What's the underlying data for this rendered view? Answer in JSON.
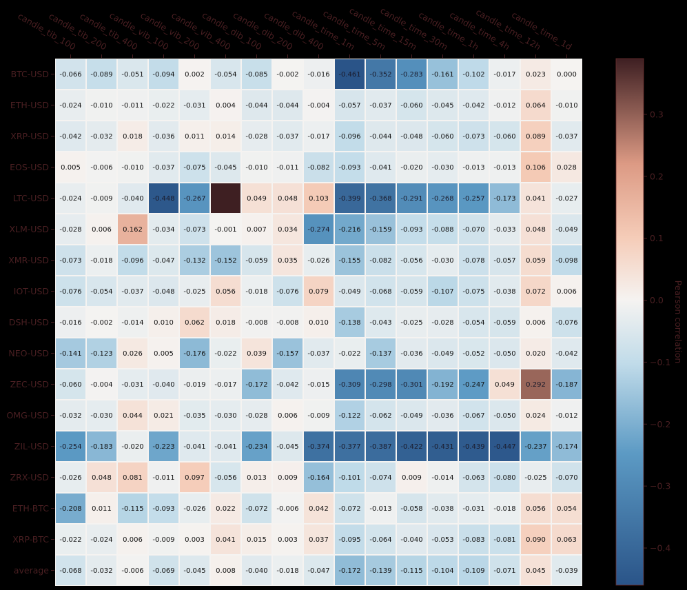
{
  "chart_data": {
    "type": "heatmap",
    "columns": [
      "candle_tib_100",
      "candle_tib_200",
      "candle_tib_400",
      "candle_vib_100",
      "candle_vib_200",
      "candle_vib_400",
      "candle_dib_100",
      "candle_dib_200",
      "candle_dib_400",
      "candle_time_1m",
      "candle_time_5m",
      "candle_time_15m",
      "candle_time_30m",
      "candle_time_1h",
      "candle_time_4h",
      "candle_time_12h",
      "candle_time_1d"
    ],
    "rows": [
      "BTC-USD",
      "ETH-USD",
      "XRP-USD",
      "EOS-USD",
      "LTC-USD",
      "XLM-USD",
      "XMR-USD",
      "IOT-USD",
      "DSH-USD",
      "NEO-USD",
      "ZEC-USD",
      "OMG-USD",
      "ZIL-USD",
      "ZRX-USD",
      "ETH-BTC",
      "XRP-BTC",
      "average"
    ],
    "values": [
      [
        "-0.066",
        "-0.089",
        "-0.051",
        "-0.094",
        "0.002",
        "-0.054",
        "-0.085",
        "-0.002",
        "-0.016",
        "-0.461",
        "-0.352",
        "-0.283",
        "-0.161",
        "-0.102",
        "-0.017",
        "0.023",
        "0.000"
      ],
      [
        "-0.024",
        "-0.010",
        "-0.011",
        "-0.022",
        "-0.031",
        "0.004",
        "-0.044",
        "-0.044",
        "-0.004",
        "-0.057",
        "-0.037",
        "-0.060",
        "-0.045",
        "-0.042",
        "-0.012",
        "0.064",
        "-0.010"
      ],
      [
        "-0.042",
        "-0.032",
        "0.018",
        "-0.036",
        "0.011",
        "0.014",
        "-0.028",
        "-0.037",
        "-0.017",
        "-0.096",
        "-0.044",
        "-0.048",
        "-0.060",
        "-0.073",
        "-0.060",
        "0.089",
        "-0.037"
      ],
      [
        "0.005",
        "-0.006",
        "-0.010",
        "-0.037",
        "-0.075",
        "-0.045",
        "-0.010",
        "-0.011",
        "-0.082",
        "-0.093",
        "-0.041",
        "-0.020",
        "-0.030",
        "-0.013",
        "-0.013",
        "0.106",
        "0.028"
      ],
      [
        "-0.024",
        "-0.009",
        "-0.040",
        "-0.448",
        "-0.267",
        "",
        "0.049",
        "0.048",
        "0.103",
        "-0.399",
        "-0.368",
        "-0.291",
        "-0.268",
        "-0.257",
        "-0.173",
        "0.041",
        "-0.027"
      ],
      [
        "-0.028",
        "0.006",
        "0.162",
        "-0.034",
        "-0.073",
        "-0.001",
        "0.007",
        "0.034",
        "-0.274",
        "-0.216",
        "-0.159",
        "-0.093",
        "-0.088",
        "-0.070",
        "-0.033",
        "0.048",
        "-0.049"
      ],
      [
        "-0.073",
        "-0.018",
        "-0.096",
        "-0.047",
        "-0.132",
        "-0.152",
        "-0.059",
        "0.035",
        "-0.026",
        "-0.155",
        "-0.082",
        "-0.056",
        "-0.030",
        "-0.078",
        "-0.057",
        "0.059",
        "-0.098"
      ],
      [
        "-0.076",
        "-0.054",
        "-0.037",
        "-0.048",
        "-0.025",
        "0.056",
        "-0.018",
        "-0.076",
        "0.079",
        "-0.049",
        "-0.068",
        "-0.059",
        "-0.107",
        "-0.075",
        "-0.038",
        "0.072",
        "0.006"
      ],
      [
        "-0.016",
        "-0.002",
        "-0.014",
        "0.010",
        "0.062",
        "0.018",
        "-0.008",
        "-0.008",
        "0.010",
        "-0.138",
        "-0.043",
        "-0.025",
        "-0.028",
        "-0.054",
        "-0.059",
        "0.006",
        "-0.076"
      ],
      [
        "-0.141",
        "-0.123",
        "0.026",
        "0.005",
        "-0.176",
        "-0.022",
        "0.039",
        "-0.157",
        "-0.037",
        "-0.022",
        "-0.137",
        "-0.036",
        "-0.049",
        "-0.052",
        "-0.050",
        "0.020",
        "-0.042"
      ],
      [
        "-0.060",
        "-0.004",
        "-0.031",
        "-0.040",
        "-0.019",
        "-0.017",
        "-0.172",
        "-0.042",
        "-0.015",
        "-0.309",
        "-0.298",
        "-0.301",
        "-0.192",
        "-0.247",
        "0.049",
        "0.292",
        "-0.187"
      ],
      [
        "-0.032",
        "-0.030",
        "0.044",
        "0.021",
        "-0.035",
        "-0.030",
        "-0.028",
        "0.006",
        "-0.009",
        "-0.122",
        "-0.062",
        "-0.049",
        "-0.036",
        "-0.067",
        "-0.050",
        "0.024",
        "-0.012"
      ],
      [
        "-0.254",
        "-0.183",
        "-0.020",
        "-0.223",
        "-0.041",
        "-0.041",
        "-0.234",
        "-0.045",
        "-0.374",
        "-0.377",
        "-0.387",
        "-0.422",
        "-0.431",
        "-0.439",
        "-0.447",
        "-0.237",
        "-0.174"
      ],
      [
        "-0.026",
        "0.048",
        "0.081",
        "-0.011",
        "0.097",
        "-0.056",
        "0.013",
        "0.009",
        "-0.164",
        "-0.101",
        "-0.074",
        "0.009",
        "-0.014",
        "-0.063",
        "-0.080",
        "-0.025",
        "-0.070"
      ],
      [
        "-0.208",
        "0.011",
        "-0.115",
        "-0.093",
        "-0.026",
        "0.022",
        "-0.072",
        "-0.006",
        "0.042",
        "-0.072",
        "-0.013",
        "-0.058",
        "-0.038",
        "-0.031",
        "-0.018",
        "0.056",
        "0.054"
      ],
      [
        "-0.022",
        "-0.024",
        "0.006",
        "-0.009",
        "0.003",
        "0.041",
        "0.015",
        "0.003",
        "0.037",
        "-0.095",
        "-0.064",
        "-0.040",
        "-0.053",
        "-0.083",
        "-0.081",
        "0.090",
        "0.063"
      ],
      [
        "-0.068",
        "-0.032",
        "-0.006",
        "-0.069",
        "-0.045",
        "0.008",
        "-0.040",
        "-0.018",
        "-0.047",
        "-0.172",
        "-0.139",
        "-0.115",
        "-0.104",
        "-0.109",
        "-0.071",
        "0.045",
        "-0.039"
      ]
    ],
    "missing_cell_value": 0.39,
    "colorbar": {
      "label": "Pearson correlation",
      "vmin": -0.46,
      "vmax": 0.39,
      "ticks": [
        "0.3",
        "0.2",
        "0.1",
        "0.0",
        "−0.1",
        "−0.2",
        "−0.3",
        "−0.4"
      ],
      "tick_values": [
        0.3,
        0.2,
        0.1,
        0.0,
        -0.1,
        -0.2,
        -0.3,
        -0.4
      ]
    },
    "colormap": "diverging blue-white-red",
    "colors": {
      "negative_end": "#2a5488",
      "negative_mid": "#5c9ac4",
      "negative_light": "#c0dbe9",
      "neutral": "#f5f3f1",
      "positive_light": "#f5ccb8",
      "positive_mid": "#dc9a84",
      "positive_end": "#3e1f22",
      "background": "#000000",
      "label_text": "#4a1f22"
    }
  }
}
